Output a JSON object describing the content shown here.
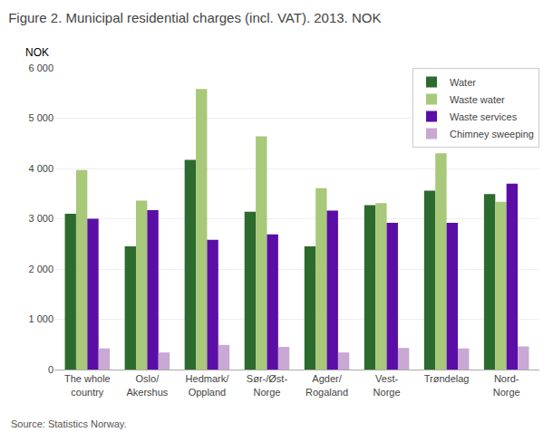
{
  "chart_data": {
    "type": "bar",
    "title": "Figure 2. Municipal residential charges (incl. VAT). 2013. NOK",
    "ylabel": "NOK",
    "annotations": [
      "Source: Statistics Norway."
    ],
    "categories": [
      "The whole\ncountry",
      "Oslo/\nAkershus",
      "Hedmark/\nOppland",
      "Sør-/Øst-\nNorge",
      "Agder/\nRogaland",
      "Vest-\nNorge",
      "Trøndelag",
      "Nord-\nNorge"
    ],
    "series": [
      {
        "name": "Water",
        "color": "#2d6a2d",
        "values": [
          3100,
          2450,
          4170,
          3140,
          2450,
          3270,
          3560,
          3490
        ]
      },
      {
        "name": "Waste water",
        "color": "#a8c87a",
        "values": [
          3970,
          3360,
          5580,
          4640,
          3610,
          3310,
          4300,
          3340
        ]
      },
      {
        "name": "Waste services",
        "color": "#5b0ea6",
        "values": [
          3000,
          3170,
          2580,
          2690,
          3160,
          2920,
          2920,
          3700
        ]
      },
      {
        "name": "Chimney sweeping",
        "color": "#c9a8d4",
        "values": [
          420,
          340,
          490,
          450,
          340,
          430,
          420,
          460
        ]
      }
    ],
    "ylim": [
      0,
      6000
    ],
    "yticks": [
      0,
      {
        "value": 1000,
        "label": "1 000"
      },
      {
        "value": 2000,
        "label": "2 000"
      },
      {
        "value": 3000,
        "label": "3 000"
      },
      {
        "value": 4000,
        "label": "4 000"
      },
      {
        "value": 5000,
        "label": "5 000"
      },
      {
        "value": 6000,
        "label": "6 000"
      }
    ],
    "grid": true,
    "legend": "upper right"
  }
}
